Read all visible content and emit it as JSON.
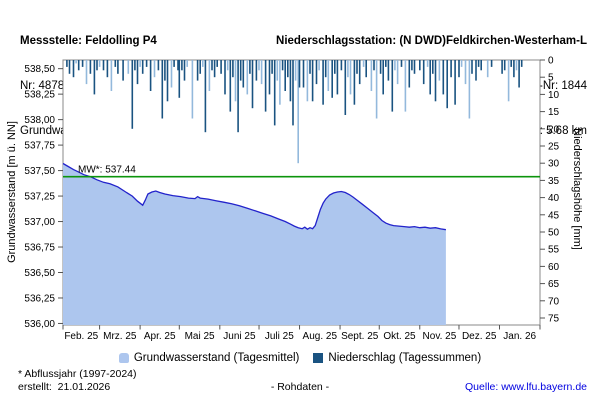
{
  "header": {
    "left": {
      "title": "Messstelle: Feldolling P4",
      "nr": "Nr: 48788",
      "aquifer": "Grundwasserleiter:  Niederterrasse"
    },
    "right": {
      "title": "Niederschlagsstation: (N DWD)Feldkirchen-Westerham-L",
      "station_nr": "Stations-Nr: 1844",
      "distance": "Entfernung: 5.68 km"
    }
  },
  "legend": {
    "groundwater_label": "Grundwasserstand (Tagesmittel)",
    "precipitation_label": "Niederschlag (Tagessummen)"
  },
  "footer": {
    "footnote": "* Abflussjahr (1997-2024)",
    "created": "erstellt:  21.01.2026",
    "center": "- Rohdaten -",
    "source": "Quelle: www.lfu.bayern.de"
  },
  "colors": {
    "area_fill": "#adc6ee",
    "line": "#2323cb",
    "bar_dark": "#1a5381",
    "bar_light": "#93b9dc",
    "mean_line": "#0c940c",
    "axis": "#888888",
    "tick": "#555555",
    "link": "#0000e0"
  },
  "chart_data": [
    {
      "type": "area",
      "name": "Grundwasserstand (Tagesmittel)",
      "title": "",
      "xlabel": "",
      "ylabel": "Grundwasserstand [m ü. NN]",
      "ylim": [
        536.0,
        538.5
      ],
      "yticks": [
        "538,50",
        "538,25",
        "538,00",
        "537,75",
        "537,50",
        "537,25",
        "537,00",
        "536,75",
        "536,50",
        "536,25",
        "536,00"
      ],
      "x_unit": "days since 2025-02-01",
      "xticklabels": [
        "Feb. 25",
        "Mrz. 25",
        "Apr. 25",
        "Mai 25",
        "Juni 25",
        "Juli 25",
        "Aug. 25",
        "Sept. 25",
        "Okt. 25",
        "Nov. 25",
        "Dez. 25",
        "Jan. 26"
      ],
      "month_boundaries_days": [
        0,
        28,
        59,
        89,
        120,
        150,
        181,
        212,
        242,
        273,
        303,
        334,
        365
      ],
      "mean_line": {
        "label": "MW*: 537.44",
        "value": 537.44
      },
      "grid": false,
      "legend_position": "bottom",
      "points": [
        [
          0,
          537.57
        ],
        [
          4,
          537.54
        ],
        [
          8,
          537.51
        ],
        [
          12,
          537.485
        ],
        [
          16,
          537.46
        ],
        [
          21,
          537.44
        ],
        [
          26,
          537.41
        ],
        [
          31,
          537.385
        ],
        [
          36,
          537.37
        ],
        [
          42,
          537.34
        ],
        [
          48,
          537.29
        ],
        [
          53,
          537.25
        ],
        [
          57,
          537.2
        ],
        [
          60,
          537.17
        ],
        [
          61,
          537.16
        ],
        [
          63,
          537.21
        ],
        [
          65,
          537.27
        ],
        [
          68,
          537.29
        ],
        [
          71,
          537.3
        ],
        [
          74,
          537.285
        ],
        [
          78,
          537.27
        ],
        [
          84,
          537.255
        ],
        [
          90,
          537.245
        ],
        [
          96,
          537.23
        ],
        [
          101,
          537.225
        ],
        [
          103,
          537.245
        ],
        [
          105,
          537.23
        ],
        [
          111,
          537.22
        ],
        [
          117,
          537.205
        ],
        [
          123,
          537.19
        ],
        [
          129,
          537.175
        ],
        [
          135,
          537.155
        ],
        [
          141,
          537.13
        ],
        [
          147,
          537.105
        ],
        [
          153,
          537.08
        ],
        [
          159,
          537.055
        ],
        [
          165,
          537.025
        ],
        [
          170,
          537.0
        ],
        [
          174,
          536.975
        ],
        [
          177,
          536.955
        ],
        [
          180,
          536.94
        ],
        [
          183,
          536.93
        ],
        [
          185,
          536.945
        ],
        [
          187,
          536.925
        ],
        [
          189,
          536.94
        ],
        [
          191,
          536.93
        ],
        [
          193,
          536.96
        ],
        [
          195,
          537.04
        ],
        [
          197,
          537.12
        ],
        [
          199,
          537.18
        ],
        [
          201,
          537.22
        ],
        [
          204,
          537.26
        ],
        [
          207,
          537.28
        ],
        [
          210,
          537.29
        ],
        [
          213,
          537.295
        ],
        [
          216,
          537.285
        ],
        [
          219,
          537.265
        ],
        [
          222,
          537.24
        ],
        [
          225,
          537.21
        ],
        [
          229,
          537.17
        ],
        [
          233,
          537.13
        ],
        [
          237,
          537.09
        ],
        [
          241,
          537.05
        ],
        [
          244,
          537.01
        ],
        [
          247,
          536.985
        ],
        [
          250,
          536.97
        ],
        [
          253,
          536.96
        ],
        [
          257,
          536.955
        ],
        [
          261,
          536.95
        ],
        [
          265,
          536.945
        ],
        [
          269,
          536.95
        ],
        [
          273,
          536.94
        ],
        [
          277,
          536.945
        ],
        [
          281,
          536.935
        ],
        [
          285,
          536.94
        ],
        [
          289,
          536.928
        ],
        [
          293,
          536.92
        ]
      ]
    },
    {
      "type": "bar",
      "name": "Niederschlag (Tagessummen)",
      "ylabel": "Niederschlagshöhe [mm]",
      "ylim": [
        0,
        80
      ],
      "inverted_axis": true,
      "yticks": [
        0,
        5,
        10,
        15,
        20,
        25,
        30,
        35,
        40,
        45,
        50,
        55,
        60,
        65,
        70,
        75
      ],
      "x_unit": "days since 2025-02-01",
      "bars_day_mm_shade": [
        [
          3,
          2,
          0
        ],
        [
          5,
          4,
          0
        ],
        [
          8,
          5,
          0
        ],
        [
          10,
          1,
          1
        ],
        [
          12,
          3,
          0
        ],
        [
          15,
          2,
          0
        ],
        [
          18,
          7,
          1
        ],
        [
          21,
          4,
          0
        ],
        [
          24,
          10,
          0
        ],
        [
          26,
          3,
          0
        ],
        [
          28,
          2,
          1
        ],
        [
          31,
          3,
          0
        ],
        [
          34,
          5,
          0
        ],
        [
          37,
          9,
          1
        ],
        [
          40,
          2,
          0
        ],
        [
          42,
          4,
          0
        ],
        [
          46,
          6,
          0
        ],
        [
          50,
          4,
          1
        ],
        [
          53,
          20,
          0
        ],
        [
          55,
          3,
          0
        ],
        [
          57,
          7,
          0
        ],
        [
          59,
          2,
          1
        ],
        [
          61,
          4,
          0
        ],
        [
          64,
          2,
          0
        ],
        [
          67,
          9,
          0
        ],
        [
          70,
          5,
          1
        ],
        [
          73,
          3,
          0
        ],
        [
          76,
          17,
          0
        ],
        [
          78,
          6,
          0
        ],
        [
          80,
          12,
          0
        ],
        [
          83,
          8,
          1
        ],
        [
          85,
          2,
          0
        ],
        [
          88,
          3,
          0
        ],
        [
          89,
          11,
          0
        ],
        [
          91,
          3,
          0
        ],
        [
          93,
          6,
          0
        ],
        [
          95,
          2,
          1
        ],
        [
          99,
          17,
          1
        ],
        [
          103,
          6,
          0
        ],
        [
          105,
          4,
          0
        ],
        [
          107,
          2,
          1
        ],
        [
          109,
          21,
          0
        ],
        [
          112,
          9,
          1
        ],
        [
          114,
          3,
          0
        ],
        [
          116,
          5,
          0
        ],
        [
          118,
          2,
          0
        ],
        [
          121,
          4,
          0
        ],
        [
          124,
          10,
          0
        ],
        [
          126,
          3,
          1
        ],
        [
          128,
          15,
          0
        ],
        [
          130,
          5,
          0
        ],
        [
          132,
          12,
          1
        ],
        [
          134,
          21,
          0
        ],
        [
          136,
          6,
          0
        ],
        [
          138,
          8,
          0
        ],
        [
          141,
          10,
          1
        ],
        [
          143,
          4,
          0
        ],
        [
          145,
          14,
          0
        ],
        [
          148,
          6,
          0
        ],
        [
          150,
          3,
          1
        ],
        [
          152,
          7,
          1
        ],
        [
          155,
          15,
          0
        ],
        [
          158,
          10,
          0
        ],
        [
          160,
          4,
          0
        ],
        [
          162,
          19,
          0
        ],
        [
          164,
          6,
          1
        ],
        [
          166,
          13,
          1
        ],
        [
          168,
          3,
          0
        ],
        [
          170,
          9,
          0
        ],
        [
          172,
          5,
          0
        ],
        [
          174,
          12,
          0
        ],
        [
          176,
          19,
          0
        ],
        [
          178,
          6,
          1
        ],
        [
          180,
          30,
          1
        ],
        [
          181,
          8,
          0
        ],
        [
          184,
          8,
          0
        ],
        [
          187,
          12,
          1
        ],
        [
          189,
          4,
          0
        ],
        [
          191,
          12,
          0
        ],
        [
          194,
          7,
          0
        ],
        [
          196,
          3,
          1
        ],
        [
          199,
          13,
          0
        ],
        [
          201,
          5,
          0
        ],
        [
          203,
          9,
          1
        ],
        [
          206,
          11,
          0
        ],
        [
          208,
          4,
          0
        ],
        [
          210,
          10,
          0
        ],
        [
          213,
          3,
          0
        ],
        [
          216,
          16,
          0
        ],
        [
          218,
          5,
          1
        ],
        [
          220,
          10,
          1
        ],
        [
          223,
          13,
          0
        ],
        [
          225,
          4,
          0
        ],
        [
          227,
          7,
          0
        ],
        [
          230,
          2,
          1
        ],
        [
          232,
          5,
          0
        ],
        [
          236,
          9,
          1
        ],
        [
          238,
          3,
          0
        ],
        [
          240,
          17,
          1
        ],
        [
          243,
          4,
          0
        ],
        [
          245,
          10,
          0
        ],
        [
          247,
          2,
          0
        ],
        [
          249,
          6,
          0
        ],
        [
          252,
          15,
          0
        ],
        [
          254,
          3,
          1
        ],
        [
          256,
          7,
          1
        ],
        [
          259,
          2,
          0
        ],
        [
          262,
          15,
          1
        ],
        [
          265,
          8,
          0
        ],
        [
          267,
          3,
          0
        ],
        [
          269,
          4,
          0
        ],
        [
          273,
          3,
          0
        ],
        [
          276,
          7,
          0
        ],
        [
          279,
          2,
          1
        ],
        [
          281,
          10,
          0
        ],
        [
          283,
          4,
          0
        ],
        [
          285,
          12,
          0
        ],
        [
          288,
          6,
          1
        ],
        [
          291,
          10,
          0
        ],
        [
          294,
          14,
          0
        ],
        [
          297,
          5,
          0
        ],
        [
          300,
          13,
          0
        ],
        [
          303,
          5,
          0
        ],
        [
          305,
          2,
          1
        ],
        [
          308,
          7,
          1
        ],
        [
          311,
          17,
          1
        ],
        [
          313,
          4,
          0
        ],
        [
          316,
          6,
          0
        ],
        [
          318,
          2,
          0
        ],
        [
          320,
          3,
          0
        ],
        [
          325,
          5,
          1
        ],
        [
          328,
          2,
          0
        ],
        [
          336,
          4,
          0
        ],
        [
          338,
          3,
          0
        ],
        [
          341,
          12,
          1
        ],
        [
          343,
          2,
          0
        ],
        [
          345,
          5,
          0
        ],
        [
          347,
          3,
          1
        ],
        [
          349,
          8,
          0
        ],
        [
          351,
          2,
          0
        ]
      ]
    }
  ]
}
